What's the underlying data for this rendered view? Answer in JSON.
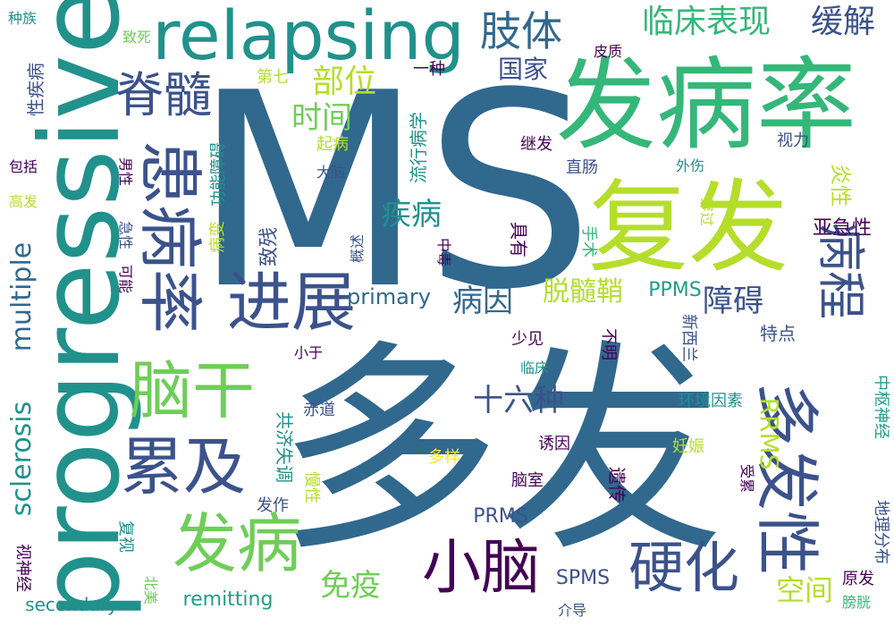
{
  "palette": {
    "dark_purple": "#440154",
    "indigo": "#3b528b",
    "blue": "#31688e",
    "teal": "#21918c",
    "teal_green": "#1f9e89",
    "green": "#35b779",
    "light_green": "#6ece58",
    "lime": "#b5de2b",
    "yellow": "#fde725"
  },
  "words": [
    "MS",
    "多发",
    "progressive",
    "发病率",
    "复发",
    "relapsing",
    "患病率",
    "进展",
    "脑干",
    "累及",
    "发病",
    "多发性",
    "病程",
    "小脑",
    "硬化",
    "脊髓",
    "肢体",
    "临床表现",
    "缓解",
    "multiple",
    "sclerosis",
    "部位",
    "时间",
    "国家",
    "疾病",
    "病因",
    "脱髓鞘",
    "障碍",
    "十六种",
    "免疫",
    "空间",
    "primary",
    "PPMS",
    "RRMS",
    "SPMS",
    "PRMS",
    "remitting",
    "secondary",
    "种族",
    "性疾病",
    "致死",
    "第七",
    "一种",
    "皮质",
    "包括",
    "高发",
    "男性",
    "急性",
    "起病",
    "大脑",
    "功能障碍",
    "流行病学",
    "继发",
    "视力",
    "外伤",
    "直肠",
    "炎性",
    "亚急性",
    "病变",
    "致残",
    "概述",
    "中毒",
    "具有",
    "手术",
    "穿过",
    "可能",
    "少见",
    "不明",
    "新西兰",
    "特点",
    "小于",
    "赤道",
    "临床",
    "环境因素",
    "中枢神经",
    "共济失调",
    "诱因",
    "多样",
    "慢性",
    "妊娠",
    "地理分布",
    "脑室",
    "遗传",
    "受累",
    "发作",
    "复视",
    "视神经",
    "北美",
    "介导",
    "原发",
    "膀胱"
  ]
}
